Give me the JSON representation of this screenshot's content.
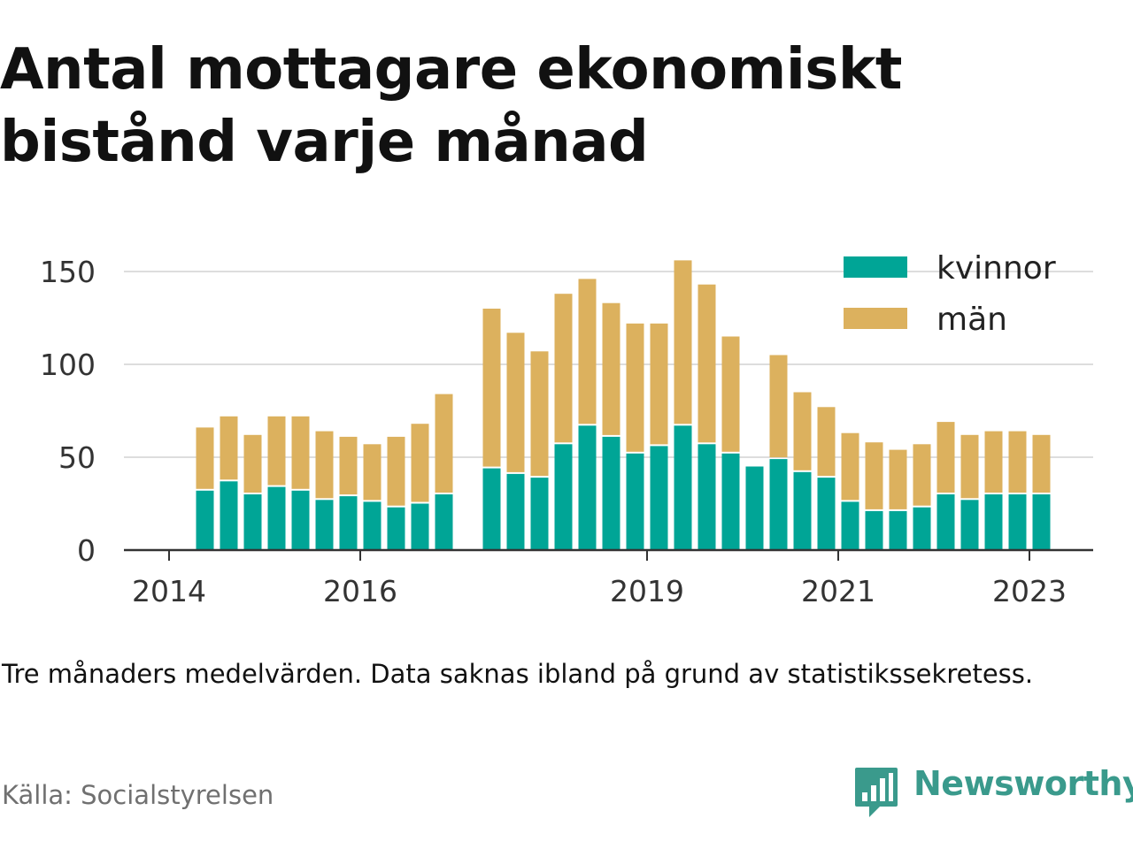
{
  "title": "Antal mottagare ekonomiskt bistånd varje månad",
  "note": "Tre månaders medelvärden. Data saknas ibland på grund av statistikssekretess.",
  "source": "Källa: Socialstyrelsen",
  "brand": {
    "name": "Newsworthy",
    "icon": "newsworthy-logo-icon",
    "color": "#3a9a8c"
  },
  "colors": {
    "kvinnor": "#00a596",
    "man": "#dcb15e",
    "grid": "#dddddd",
    "axis": "#333333",
    "text": "#111111"
  },
  "chart_data": {
    "type": "bar",
    "stacked": true,
    "title": "Antal mottagare ekonomiskt bistånd varje månad",
    "xlabel": "",
    "ylabel": "",
    "ylim": [
      0,
      160
    ],
    "yticks": [
      0,
      50,
      100,
      150
    ],
    "grid": true,
    "legend": "top-right",
    "xticks": [
      {
        "label": "2014",
        "x": 2014.0
      },
      {
        "label": "2016",
        "x": 2016.0
      },
      {
        "label": "2019",
        "x": 2019.0
      },
      {
        "label": "2021",
        "x": 2021.0
      },
      {
        "label": "2023",
        "x": 2023.0
      }
    ],
    "x": [
      2014.375,
      2014.625,
      2014.875,
      2015.125,
      2015.375,
      2015.625,
      2015.875,
      2016.125,
      2016.375,
      2016.625,
      2016.875,
      2017.375,
      2017.625,
      2017.875,
      2018.125,
      2018.375,
      2018.625,
      2018.875,
      2019.125,
      2019.375,
      2019.625,
      2019.875,
      2020.125,
      2020.375,
      2020.625,
      2020.875,
      2021.125,
      2021.375,
      2021.625,
      2021.875,
      2022.125,
      2022.375,
      2022.625,
      2022.875,
      2023.125
    ],
    "series": [
      {
        "name": "kvinnor",
        "color": "#00a596",
        "values": [
          32,
          37,
          30,
          34,
          32,
          27,
          29,
          26,
          23,
          25,
          30,
          44,
          41,
          39,
          57,
          67,
          61,
          52,
          56,
          67,
          57,
          52,
          45,
          49,
          42,
          39,
          26,
          21,
          21,
          23,
          30,
          27,
          30,
          30,
          30
        ]
      },
      {
        "name": "män",
        "color": "#dcb15e",
        "values": [
          34,
          35,
          32,
          38,
          40,
          37,
          32,
          31,
          38,
          43,
          54,
          86,
          76,
          68,
          81,
          79,
          72,
          70,
          66,
          89,
          86,
          63,
          0,
          56,
          43,
          38,
          37,
          37,
          33,
          34,
          39,
          35,
          34,
          34,
          32
        ]
      }
    ]
  }
}
